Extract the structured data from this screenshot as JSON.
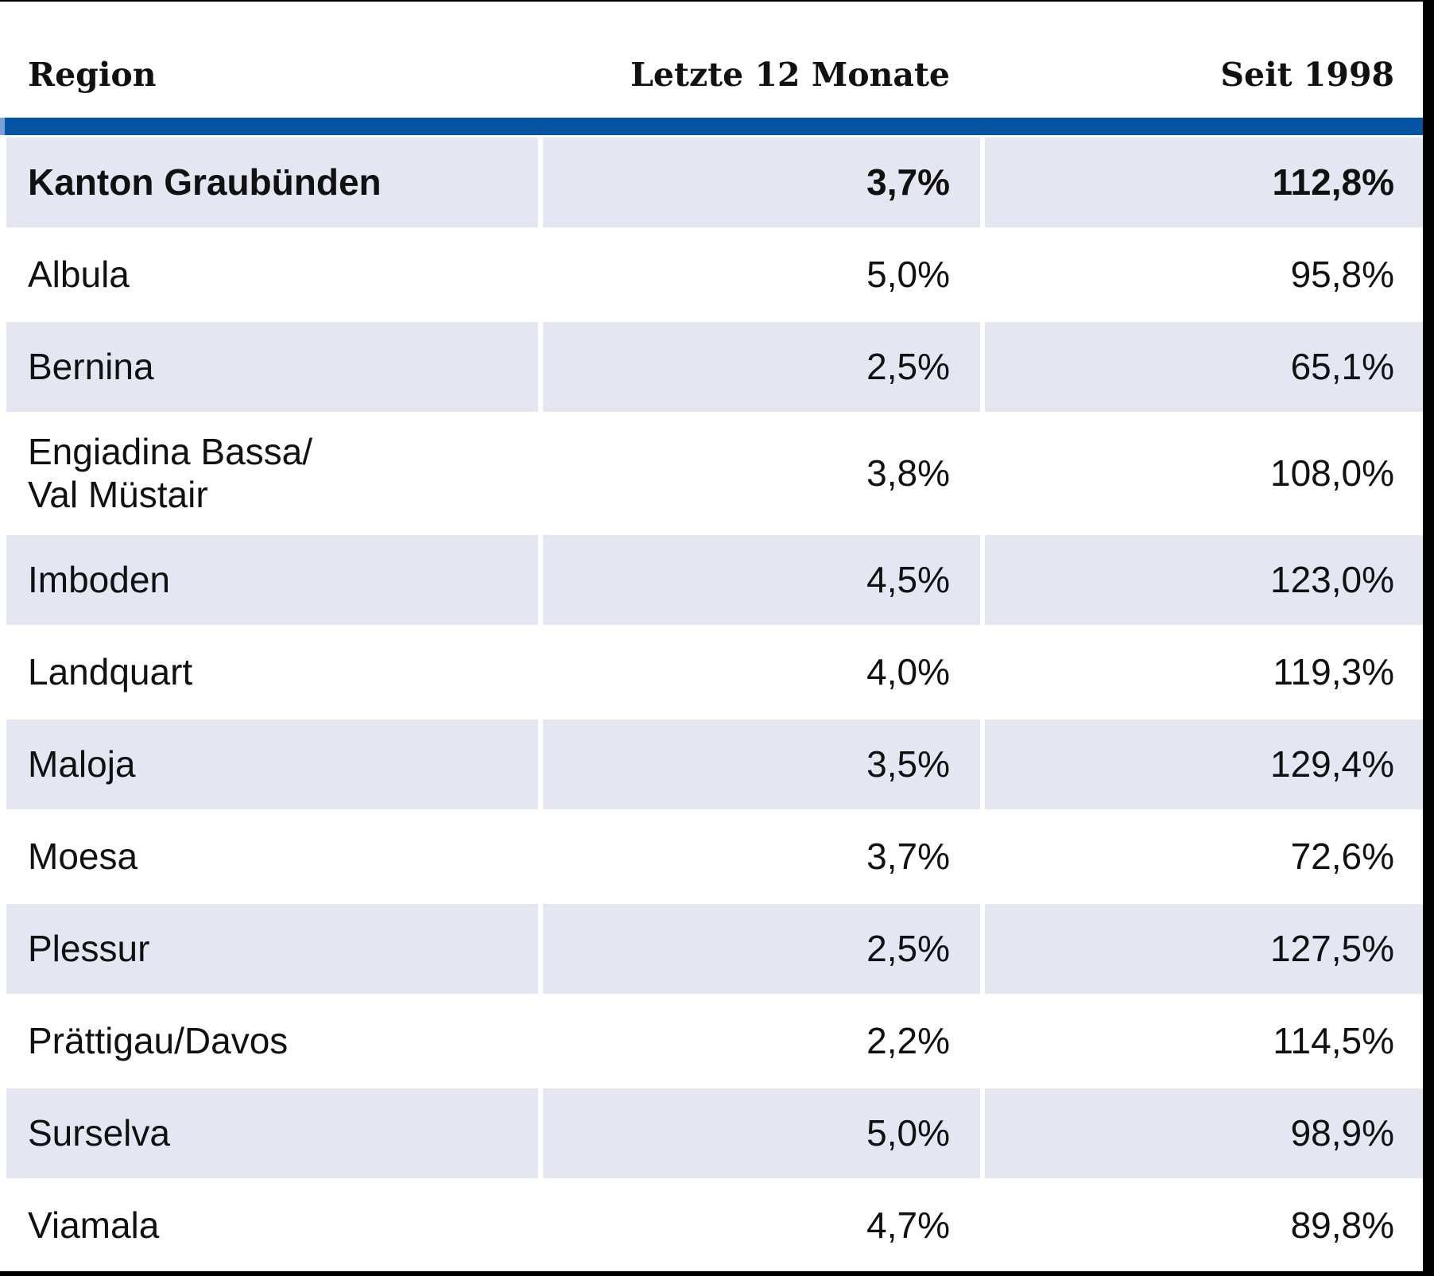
{
  "table": {
    "columns": [
      "Region",
      "Letzte 12 Monate",
      "Seit 1998"
    ],
    "rows": [
      {
        "region": "Kanton Graubünden",
        "last12": "3,7%",
        "since1998": "112,8%",
        "emphasis": true
      },
      {
        "region": "Albula",
        "last12": "5,0%",
        "since1998": "95,8%",
        "emphasis": false
      },
      {
        "region": "Bernina",
        "last12": "2,5%",
        "since1998": "65,1%",
        "emphasis": false
      },
      {
        "region": "Engiadina Bassa/\nVal Müstair",
        "last12": "3,8%",
        "since1998": "108,0%",
        "emphasis": false
      },
      {
        "region": "Imboden",
        "last12": "4,5%",
        "since1998": "123,0%",
        "emphasis": false
      },
      {
        "region": "Landquart",
        "last12": "4,0%",
        "since1998": "119,3%",
        "emphasis": false
      },
      {
        "region": "Maloja",
        "last12": "3,5%",
        "since1998": "129,4%",
        "emphasis": false
      },
      {
        "region": "Moesa",
        "last12": "3,7%",
        "since1998": "72,6%",
        "emphasis": false
      },
      {
        "region": "Plessur",
        "last12": "2,5%",
        "since1998": "127,5%",
        "emphasis": false
      },
      {
        "region": "Prättigau/Davos",
        "last12": "2,2%",
        "since1998": "114,5%",
        "emphasis": false
      },
      {
        "region": "Surselva",
        "last12": "5,0%",
        "since1998": "98,9%",
        "emphasis": false
      },
      {
        "region": "Viamala",
        "last12": "4,7%",
        "since1998": "89,8%",
        "emphasis": false
      }
    ]
  },
  "chart_data": {
    "type": "table",
    "title": "",
    "columns": [
      "Region",
      "Letzte 12 Monate",
      "Seit 1998"
    ],
    "categories": [
      "Kanton Graubünden",
      "Albula",
      "Bernina",
      "Engiadina Bassa/Val Müstair",
      "Imboden",
      "Landquart",
      "Maloja",
      "Moesa",
      "Plessur",
      "Prättigau/Davos",
      "Surselva",
      "Viamala"
    ],
    "series": [
      {
        "name": "Letzte 12 Monate",
        "unit": "%",
        "values": [
          3.7,
          5.0,
          2.5,
          3.8,
          4.5,
          4.0,
          3.5,
          3.7,
          2.5,
          2.2,
          5.0,
          4.7
        ]
      },
      {
        "name": "Seit 1998",
        "unit": "%",
        "values": [
          112.8,
          95.8,
          65.1,
          108.0,
          123.0,
          119.3,
          129.4,
          72.6,
          127.5,
          114.5,
          98.9,
          89.8
        ]
      }
    ],
    "number_format": "decimal-comma",
    "layout": {
      "zebra_striping": true,
      "first_row_bold": true,
      "value_alignment": "right"
    }
  },
  "colors": {
    "accent_bar": "#0553a3",
    "accent_bar_cap": "#7aa0cf",
    "row_alt": "#e4e7f1",
    "frame": "#000000",
    "text": "#111111"
  }
}
